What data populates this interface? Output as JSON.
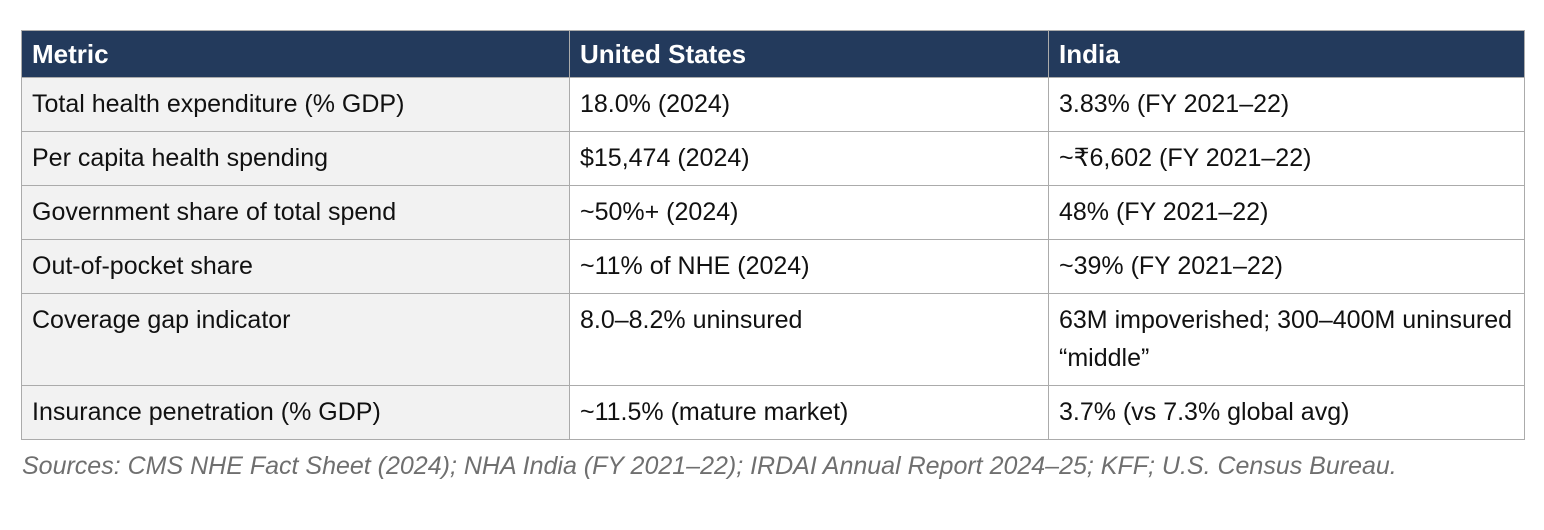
{
  "table": {
    "columns": {
      "metric": "Metric",
      "us": "United States",
      "india": "India"
    },
    "rows": [
      {
        "metric": "Total health expenditure (% GDP)",
        "us": "18.0% (2024)",
        "india": "3.83% (FY 2021–22)"
      },
      {
        "metric": "Per capita health spending",
        "us": "$15,474 (2024)",
        "india": "~₹6,602 (FY 2021–22)"
      },
      {
        "metric": "Government share of total spend",
        "us": "~50%+ (2024)",
        "india": "48% (FY 2021–22)"
      },
      {
        "metric": "Out-of-pocket share",
        "us": "~11% of NHE (2024)",
        "india": "~39% (FY 2021–22)"
      },
      {
        "metric": "Coverage gap indicator",
        "us": "8.0–8.2% uninsured",
        "india": "63M impoverished; 300–400M uninsured “middle”"
      },
      {
        "metric": "Insurance penetration (% GDP)",
        "us": "~11.5% (mature market)",
        "india": "3.7% (vs 7.3% global avg)"
      }
    ]
  },
  "footer": {
    "sources": "Sources: CMS NHE Fact Sheet (2024); NHA India (FY 2021–22); IRDAI Annual Report 2024–25; KFF; U.S. Census Bureau."
  },
  "colors": {
    "header_bg": "#233a5c",
    "header_text": "#ffffff",
    "metric_column_bg": "#f2f2f2",
    "cell_bg": "#ffffff",
    "body_text": "#111111",
    "grid_border": "#ababab",
    "outer_border": "#969696",
    "sources_text": "#6f6f6f"
  }
}
